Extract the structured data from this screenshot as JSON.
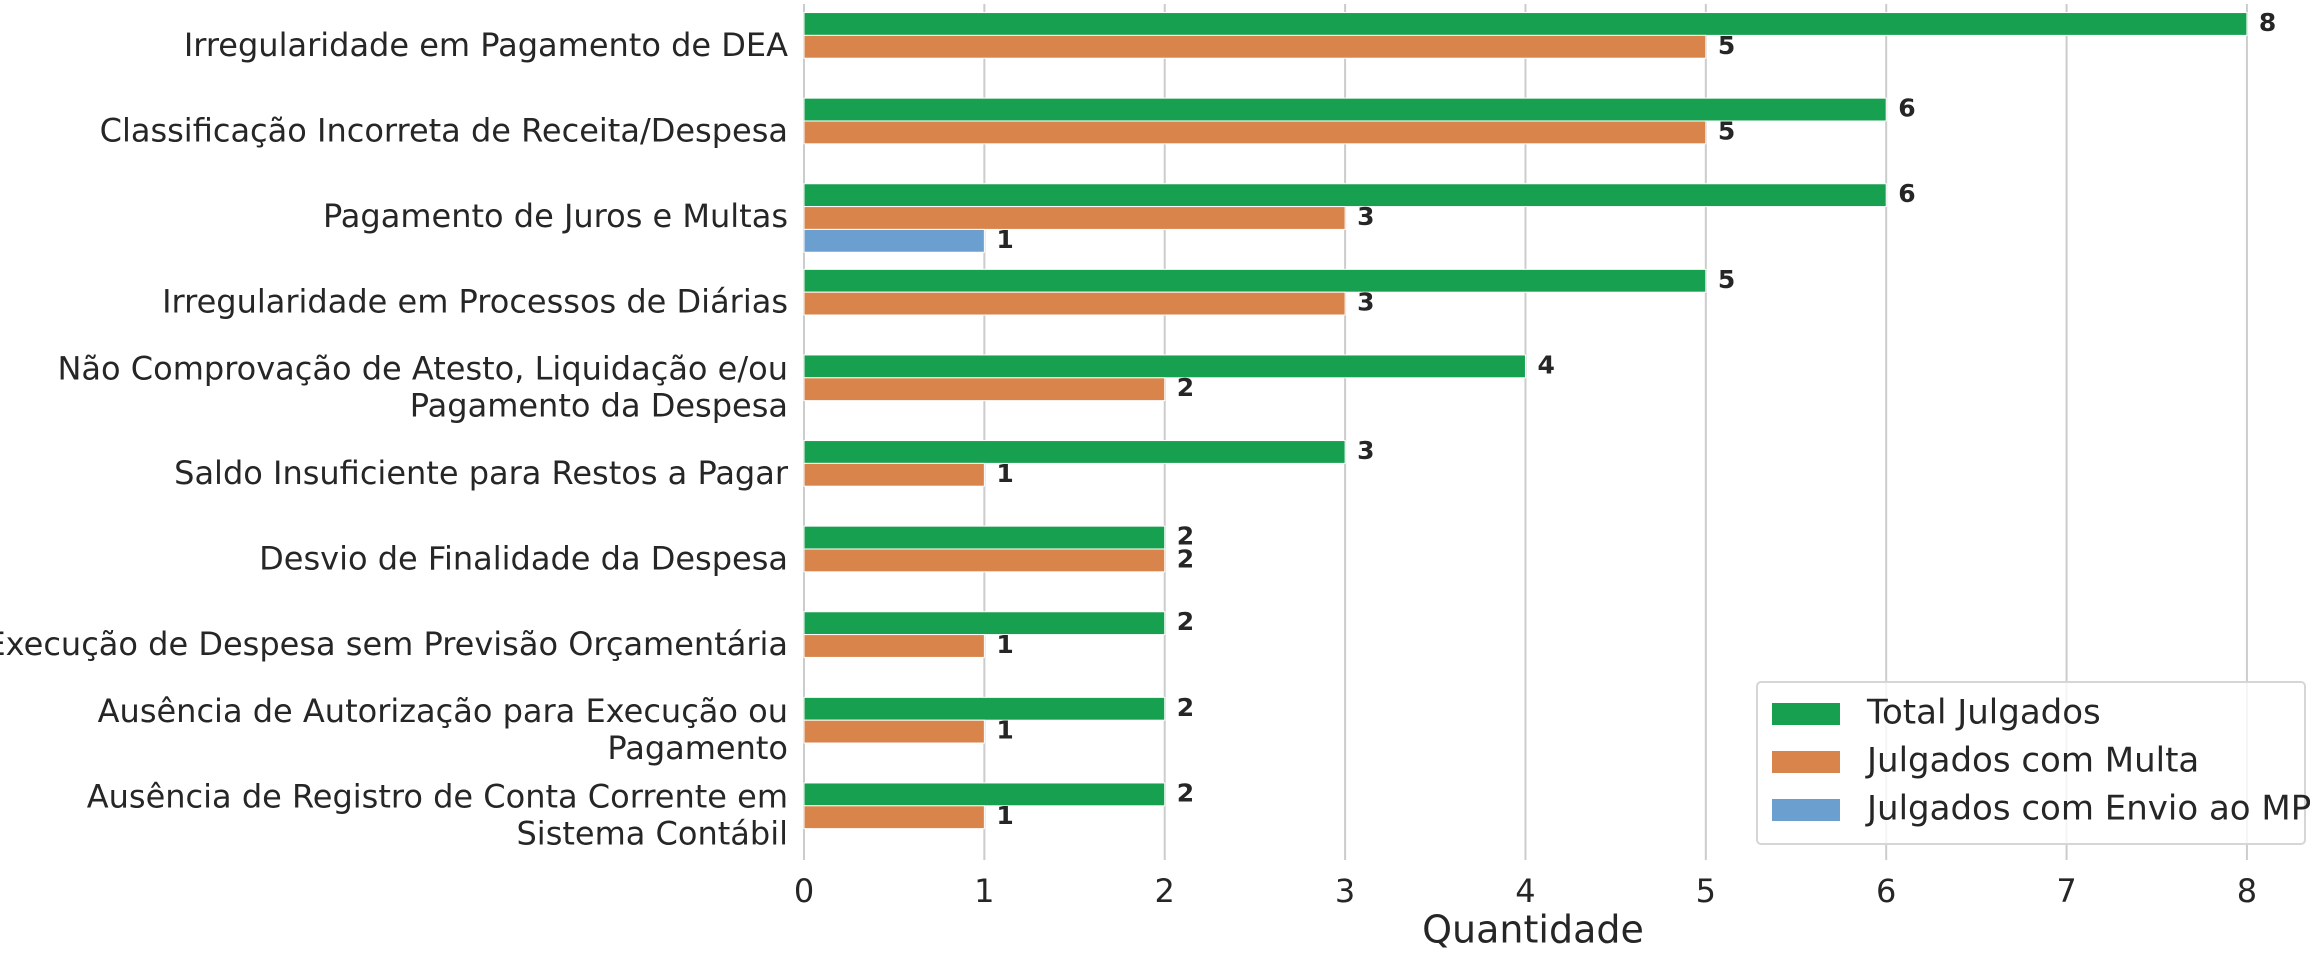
{
  "chart_data": {
    "type": "barh",
    "xlabel": "Quantidade",
    "categories": [
      "Irregularidade em Pagamento de DEA",
      "Classificação Incorreta de Receita/Despesa",
      "Pagamento de Juros e Multas",
      "Irregularidade em Processos de Diárias",
      "Não Comprovação de Atesto, Liquidação e/ou\nPagamento da Despesa",
      "Saldo Insuficiente para Restos a Pagar",
      "Desvio de Finalidade da Despesa",
      "Execução de Despesa sem Previsão Orçamentária",
      "Ausência de Autorização para Execução ou\nPagamento",
      "Ausência de Registro de Conta Corrente em\nSistema Contábil"
    ],
    "series": [
      {
        "name": "Total Julgados",
        "color": "#17a04f",
        "values": [
          8,
          6,
          6,
          5,
          4,
          3,
          2,
          2,
          2,
          2
        ]
      },
      {
        "name": "Julgados com Multa",
        "color": "#d9844a",
        "values": [
          5,
          5,
          3,
          3,
          2,
          1,
          2,
          1,
          1,
          1
        ]
      },
      {
        "name": "Julgados com Envio ao MPE",
        "color": "#6a9fcf",
        "values": [
          null,
          null,
          1,
          null,
          null,
          null,
          null,
          null,
          null,
          null
        ]
      }
    ],
    "xlim": [
      0,
      8.2
    ],
    "xticks": [
      0,
      1,
      2,
      3,
      4,
      5,
      6,
      7,
      8
    ],
    "grid": true,
    "legend": "lower right"
  }
}
